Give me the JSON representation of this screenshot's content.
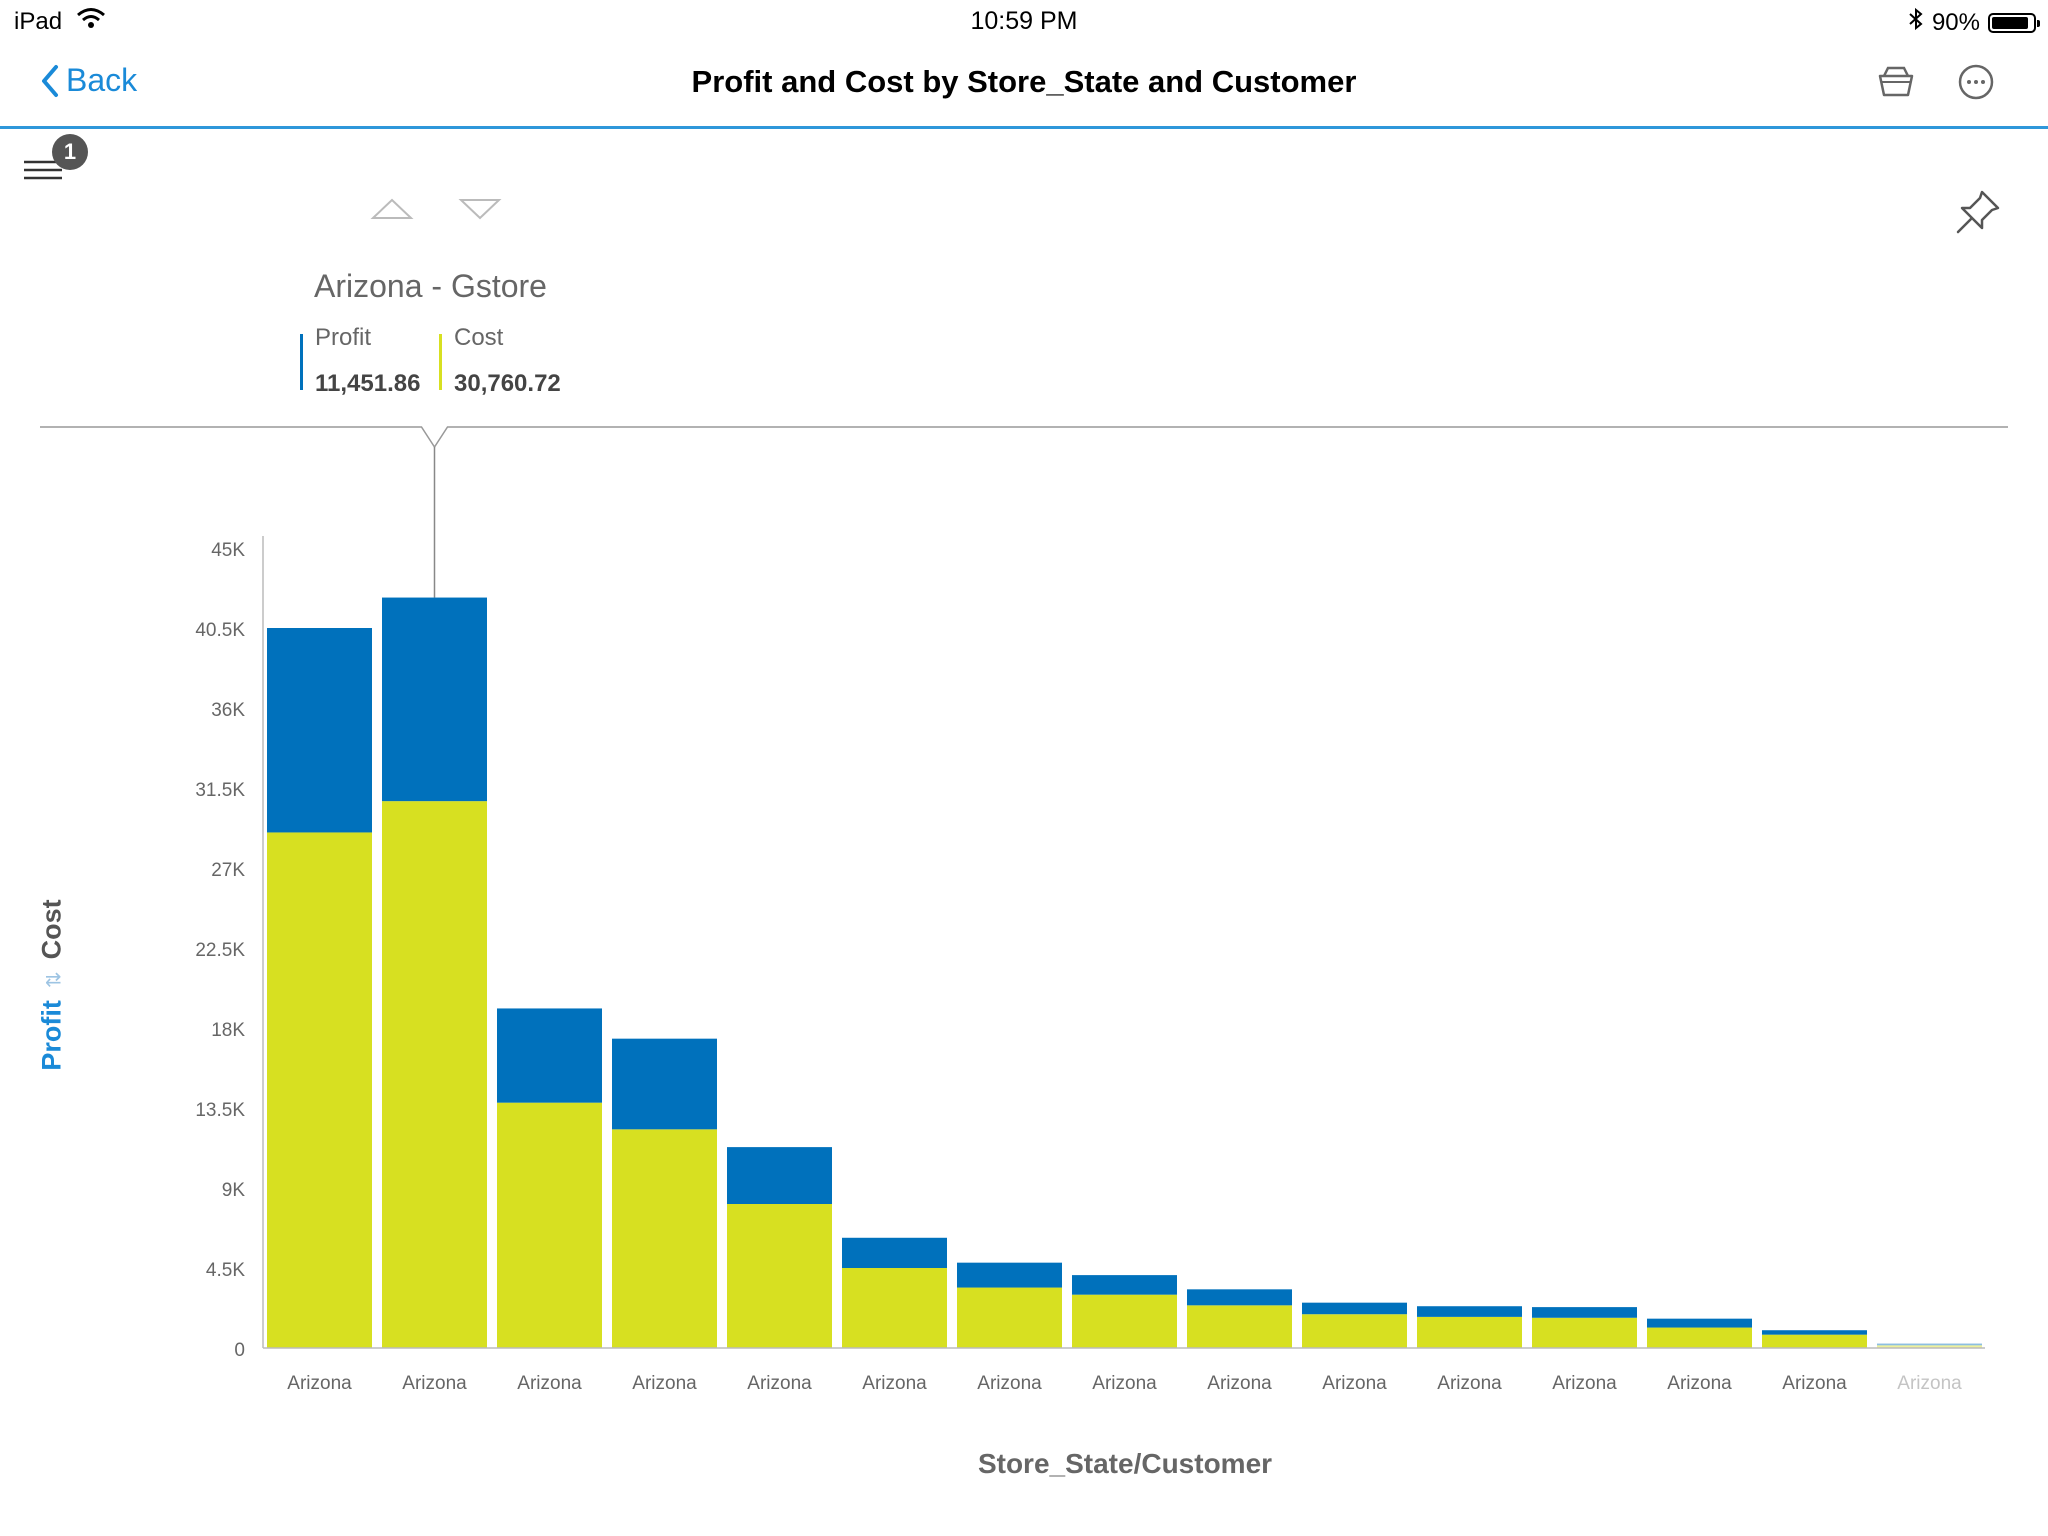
{
  "status_bar": {
    "device": "iPad",
    "time": "10:59 PM",
    "battery": "90%",
    "battery_level": 0.9,
    "icons": [
      "wifi-icon",
      "bluetooth-icon",
      "battery-icon"
    ]
  },
  "nav": {
    "back_label": "Back",
    "title": "Profit and Cost by Store_State and Customer",
    "icons": [
      "basket-icon",
      "more-icon"
    ]
  },
  "toolbar": {
    "menu_badge": "1",
    "icons": [
      "menu-icon",
      "up-arrow-icon",
      "down-arrow-icon",
      "pin-icon"
    ]
  },
  "tooltip": {
    "title": "Arizona - Gstore",
    "items": [
      {
        "name": "Profit",
        "value": "11,451.86",
        "color": "#0071bc"
      },
      {
        "name": "Cost",
        "value": "30,760.72",
        "color": "#d7e021"
      }
    ]
  },
  "chart_data": {
    "type": "bar",
    "stacked": true,
    "title": "Profit and Cost by Store_State and Customer",
    "xlabel": "Store_State/Customer",
    "ylabel_parts": [
      "Profit",
      "Cost"
    ],
    "categories": [
      "Arizona",
      "Arizona",
      "Arizona",
      "Arizona",
      "Arizona",
      "Arizona",
      "Arizona",
      "Arizona",
      "Arizona",
      "Arizona",
      "Arizona",
      "Arizona",
      "Arizona",
      "Arizona",
      "Arizona"
    ],
    "series": [
      {
        "name": "Cost",
        "color": "#d7e021",
        "values": [
          29000,
          30760.72,
          13800,
          12300,
          8100,
          4500,
          3400,
          3000,
          2400,
          1900,
          1750,
          1700,
          1150,
          750,
          150
        ]
      },
      {
        "name": "Profit",
        "color": "#0071bc",
        "values": [
          11500,
          11451.86,
          5300,
          5100,
          3200,
          1700,
          1400,
          1100,
          900,
          650,
          600,
          600,
          500,
          250,
          100
        ]
      }
    ],
    "yticks": [
      "0",
      "4.5K",
      "9K",
      "13.5K",
      "18K",
      "22.5K",
      "27K",
      "31.5K",
      "36K",
      "40.5K",
      "45K"
    ],
    "ylim": [
      0,
      45000
    ],
    "grid": false,
    "legend": "tooltip top-left"
  }
}
